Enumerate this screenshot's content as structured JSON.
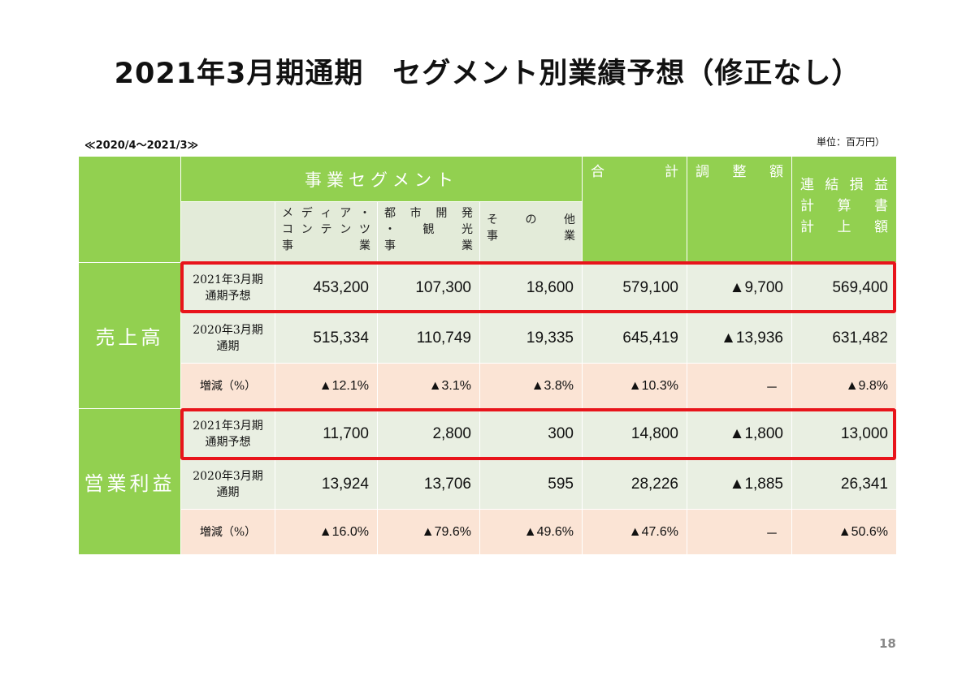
{
  "title": "2021年3月期通期　セグメント別業績予想（修正なし）",
  "period": "≪2020/4～2021/3≫",
  "unit": "単位：百万円）",
  "page_number": "18",
  "colors": {
    "green": "#92d050",
    "pale_green": "#e9efe2",
    "pink": "#fbe4d5",
    "red": "#e8141b"
  },
  "header": {
    "segment_group": "事業セグメント",
    "media": [
      "メ",
      "デ",
      "ィ",
      "ア",
      "・",
      "コ",
      "ン",
      "テ",
      "ン",
      "ツ",
      "事",
      "業"
    ],
    "urban": [
      "都",
      "市",
      "開",
      "発",
      "・",
      "観",
      "光",
      "事",
      "業"
    ],
    "other": [
      "そ",
      "の",
      "他",
      "事",
      "業"
    ],
    "total": [
      "合",
      "計"
    ],
    "adjust": [
      "調",
      "整",
      "額"
    ],
    "consolidated": [
      "連",
      "結",
      "損",
      "益",
      "計",
      "算",
      "書",
      "計",
      "上",
      "額"
    ]
  },
  "sales": {
    "label": "売上高",
    "rows": [
      {
        "label1": "2021年3月期",
        "label2": "通期予想",
        "media": "453,200",
        "urban": "107,300",
        "other": "18,600",
        "total": "579,100",
        "adjust": "▲9,700",
        "consolidated": "569,400"
      },
      {
        "label1": "2020年3月期",
        "label2": "通期",
        "media": "515,334",
        "urban": "110,749",
        "other": "19,335",
        "total": "645,419",
        "adjust": "▲13,936",
        "consolidated": "631,482"
      },
      {
        "label1": "増減（%）",
        "media": "▲12.1%",
        "urban": "▲3.1%",
        "other": "▲3.8%",
        "total": "▲10.3%",
        "adjust": "－",
        "consolidated": "▲9.8%"
      }
    ]
  },
  "operating_profit": {
    "label": "営業利益",
    "rows": [
      {
        "label1": "2021年3月期",
        "label2": "通期予想",
        "media": "11,700",
        "urban": "2,800",
        "other": "300",
        "total": "14,800",
        "adjust": "▲1,800",
        "consolidated": "13,000"
      },
      {
        "label1": "2020年3月期",
        "label2": "通期",
        "media": "13,924",
        "urban": "13,706",
        "other": "595",
        "total": "28,226",
        "adjust": "▲1,885",
        "consolidated": "26,341"
      },
      {
        "label1": "増減（%）",
        "media": "▲16.0%",
        "urban": "▲79.6%",
        "other": "▲49.6%",
        "total": "▲47.6%",
        "adjust": "－",
        "consolidated": "▲50.6%"
      }
    ]
  }
}
